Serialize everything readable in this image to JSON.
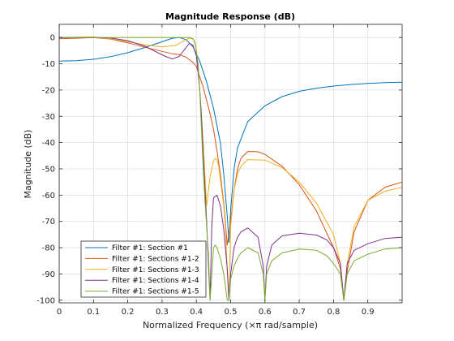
{
  "chart_data": {
    "type": "line",
    "title": "Magnitude Response (dB)",
    "xlabel": "Normalized Frequency (×π rad/sample)",
    "ylabel": "Magnitude (dB)",
    "xlim": [
      0,
      1
    ],
    "ylim": [
      -101,
      5
    ],
    "xticks": [
      0,
      0.1,
      0.2,
      0.3,
      0.4,
      0.5,
      0.6,
      0.7,
      0.8,
      0.9
    ],
    "xtick_labels": [
      "0",
      "0.1",
      "0.2",
      "0.3",
      "0.4",
      "0.5",
      "0.6",
      "0.7",
      "0.8",
      "0.9"
    ],
    "yticks": [
      0,
      -10,
      -20,
      -30,
      -40,
      -50,
      -60,
      -70,
      -80,
      -90,
      -100
    ],
    "ytick_labels": [
      "0",
      "-10",
      "-20",
      "-30",
      "-40",
      "-50",
      "-60",
      "-70",
      "-80",
      "-90",
      "-100"
    ],
    "grid": true,
    "legend_position": "bottom-left",
    "series": [
      {
        "name": "Filter #1: Section #1",
        "color": "#0072bd",
        "x": [
          0,
          0.05,
          0.1,
          0.15,
          0.2,
          0.25,
          0.3,
          0.33,
          0.35,
          0.37,
          0.39,
          0.41,
          0.43,
          0.45,
          0.47,
          0.48,
          0.49,
          0.495,
          0.5,
          0.51,
          0.52,
          0.55,
          0.6,
          0.65,
          0.7,
          0.75,
          0.8,
          0.85,
          0.9,
          0.95,
          1.0
        ],
        "y": [
          -9,
          -8.8,
          -8.3,
          -7.3,
          -5.8,
          -3.8,
          -1.6,
          -0.3,
          0,
          -0.8,
          -3.5,
          -9,
          -17,
          -27,
          -40,
          -52,
          -68,
          -78,
          -66,
          -50,
          -42,
          -32,
          -26,
          -22.5,
          -20.5,
          -19.3,
          -18.5,
          -17.9,
          -17.5,
          -17.2,
          -17
        ]
      },
      {
        "name": "Filter #1: Sections #1-2",
        "color": "#d95319",
        "x": [
          0,
          0.05,
          0.1,
          0.15,
          0.2,
          0.25,
          0.3,
          0.33,
          0.35,
          0.37,
          0.39,
          0.4,
          0.41,
          0.42,
          0.43,
          0.44,
          0.45,
          0.46,
          0.47,
          0.48,
          0.49,
          0.5,
          0.51,
          0.52,
          0.53,
          0.55,
          0.58,
          0.6,
          0.65,
          0.7,
          0.75,
          0.8,
          0.82,
          0.83,
          0.84,
          0.86,
          0.9,
          0.95,
          1.0
        ],
        "y": [
          -0.5,
          -0.3,
          0,
          -0.6,
          -2,
          -3.7,
          -5.3,
          -6.2,
          -6.5,
          -7.5,
          -9.5,
          -11,
          -15,
          -19,
          -24,
          -29,
          -35,
          -43,
          -52,
          -63,
          -79,
          -70,
          -58,
          -50,
          -46,
          -43.4,
          -43.5,
          -44.5,
          -49,
          -56,
          -66,
          -80,
          -88,
          -100,
          -89,
          -74,
          -62,
          -57,
          -55
        ]
      },
      {
        "name": "Filter #1: Sections #1-3",
        "color": "#edb120",
        "x": [
          0,
          0.05,
          0.1,
          0.15,
          0.2,
          0.25,
          0.3,
          0.34,
          0.36,
          0.38,
          0.39,
          0.395,
          0.4,
          0.405,
          0.41,
          0.415,
          0.42,
          0.425,
          0.43,
          0.44,
          0.45,
          0.455,
          0.46,
          0.465,
          0.47,
          0.48,
          0.485,
          0.49,
          0.495,
          0.5,
          0.51,
          0.52,
          0.53,
          0.55,
          0.6,
          0.65,
          0.7,
          0.75,
          0.8,
          0.82,
          0.83,
          0.84,
          0.86,
          0.9,
          0.95,
          1.0
        ],
        "y": [
          0,
          0.1,
          0.2,
          -0.5,
          -1.6,
          -2.8,
          -3.6,
          -3,
          -1.5,
          -0.3,
          -0.5,
          -2,
          -5,
          -12,
          -20,
          -30,
          -40,
          -52,
          -64,
          -53,
          -47,
          -46,
          -46.5,
          -49,
          -54,
          -64,
          -73,
          -89,
          -100,
          -72,
          -58,
          -52,
          -49,
          -46.5,
          -46.7,
          -49.5,
          -55,
          -63,
          -75,
          -86,
          -100,
          -86,
          -72,
          -62,
          -58.5,
          -57
        ]
      },
      {
        "name": "Filter #1: Sections #1-4",
        "color": "#7e2f8e",
        "x": [
          0,
          0.05,
          0.1,
          0.15,
          0.2,
          0.25,
          0.28,
          0.31,
          0.33,
          0.35,
          0.37,
          0.38,
          0.39,
          0.4,
          0.405,
          0.41,
          0.415,
          0.42,
          0.43,
          0.435,
          0.44,
          0.445,
          0.45,
          0.46,
          0.47,
          0.48,
          0.49,
          0.495,
          0.5,
          0.51,
          0.52,
          0.53,
          0.55,
          0.58,
          0.595,
          0.6,
          0.605,
          0.62,
          0.65,
          0.7,
          0.75,
          0.78,
          0.8,
          0.82,
          0.83,
          0.84,
          0.86,
          0.9,
          0.95,
          1.0
        ],
        "y": [
          0,
          0,
          0,
          -0.2,
          -1.2,
          -3.3,
          -5.3,
          -7.2,
          -8.2,
          -7.2,
          -3.8,
          -2.2,
          -3,
          -7,
          -13,
          -20,
          -30,
          -45,
          -70,
          -86,
          -100,
          -72,
          -61,
          -60,
          -64,
          -73,
          -88,
          -100,
          -90,
          -80,
          -76,
          -74,
          -72.5,
          -76,
          -87,
          -100,
          -87,
          -79,
          -75.5,
          -74.5,
          -75.2,
          -77,
          -80,
          -86,
          -100,
          -86,
          -81,
          -78.5,
          -76.5,
          -76
        ]
      },
      {
        "name": "Filter #1: Sections #1-5",
        "color": "#77ac30",
        "x": [
          0,
          0.05,
          0.1,
          0.15,
          0.2,
          0.25,
          0.3,
          0.35,
          0.38,
          0.39,
          0.395,
          0.4,
          0.405,
          0.41,
          0.415,
          0.42,
          0.425,
          0.43,
          0.435,
          0.44,
          0.45,
          0.455,
          0.46,
          0.47,
          0.48,
          0.49,
          0.495,
          0.5,
          0.51,
          0.52,
          0.53,
          0.55,
          0.58,
          0.595,
          0.6,
          0.605,
          0.62,
          0.65,
          0.7,
          0.75,
          0.78,
          0.8,
          0.82,
          0.83,
          0.84,
          0.86,
          0.9,
          0.95,
          1.0
        ],
        "y": [
          0,
          0,
          0,
          0,
          0,
          0,
          0,
          0,
          0,
          -0.5,
          -1.5,
          -5,
          -10,
          -20,
          -35,
          -50,
          -62,
          -72,
          -82,
          -100,
          -80,
          -79,
          -80,
          -84,
          -90,
          -100,
          -100,
          -92,
          -87,
          -84,
          -82,
          -80,
          -82,
          -90,
          -100,
          -90,
          -85,
          -82,
          -80.5,
          -81,
          -83,
          -86,
          -90,
          -100,
          -90,
          -85,
          -82.5,
          -80.5,
          -80
        ]
      }
    ]
  }
}
